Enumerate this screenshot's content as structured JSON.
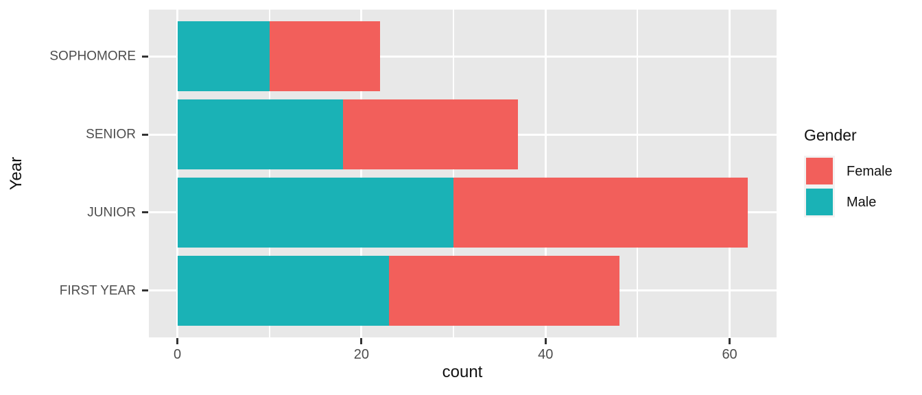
{
  "chart_data": {
    "type": "bar",
    "orientation": "horizontal",
    "stacked": true,
    "title": "",
    "xlabel": "count",
    "ylabel": "Year",
    "categories": [
      "SOPHOMORE",
      "SENIOR",
      "JUNIOR",
      "FIRST YEAR"
    ],
    "series": [
      {
        "name": "Male",
        "color": "#1AB2B6",
        "values": [
          10,
          18,
          30,
          23
        ]
      },
      {
        "name": "Female",
        "color": "#F25F5B",
        "values": [
          12,
          19,
          32,
          25
        ]
      }
    ],
    "totals": [
      22,
      37,
      62,
      48
    ],
    "x_ticks": [
      0,
      20,
      40,
      60
    ],
    "x_minor_ticks": [
      10,
      30,
      50
    ],
    "xlim": [
      -3.1,
      65.1
    ],
    "grid": true,
    "panel_background": "#E8E8E8",
    "gridline_color": "#FFFFFF",
    "tick_label_color": "#4D4D4D",
    "legend": {
      "title": "Gender",
      "position": "right",
      "entries": [
        {
          "label": "Female",
          "color": "#F25F5B"
        },
        {
          "label": "Male",
          "color": "#1AB2B6"
        }
      ]
    }
  }
}
